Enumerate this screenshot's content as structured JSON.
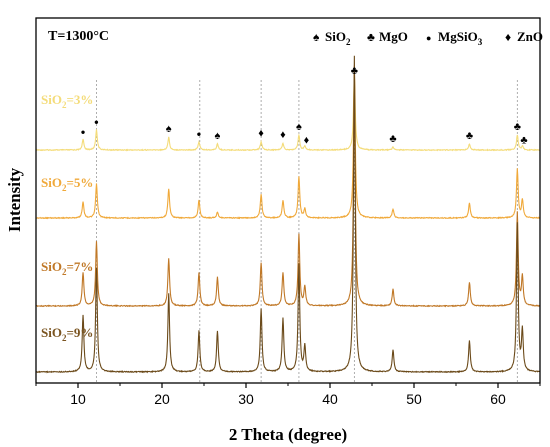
{
  "chart_data": {
    "type": "line",
    "annotation": "T=1300°C",
    "xlabel": "2 Theta (degree)",
    "ylabel": "Intensity",
    "xlim": [
      5,
      65
    ],
    "xticks": [
      10,
      20,
      30,
      40,
      50,
      60
    ],
    "yticks_shown": false,
    "grid": false,
    "legend_position": "top-right",
    "legend": [
      {
        "symbol": "♠",
        "symbol_name": "spade-icon",
        "label": "SiO",
        "sub": "2"
      },
      {
        "symbol": "♣",
        "symbol_name": "club-icon",
        "label": "MgO",
        "sub": ""
      },
      {
        "symbol": "●",
        "symbol_name": "dot-icon",
        "label": "MgSiO",
        "sub": "3"
      },
      {
        "symbol": "♦",
        "symbol_name": "diamond-icon",
        "label": "ZnO",
        "sub": ""
      }
    ],
    "reference_lines_x": [
      12.2,
      24.5,
      31.8,
      36.3,
      42.9,
      62.3
    ],
    "series": [
      {
        "name": "SiO2=3%",
        "name_main": "SiO",
        "name_sub": "2",
        "name_tail": "=3%",
        "color": "#f4dc7a",
        "label_color": "#f4dc7a",
        "peaks": [
          {
            "x": 10.6,
            "h": 0.14
          },
          {
            "x": 12.2,
            "h": 0.27
          },
          {
            "x": 20.8,
            "h": 0.17
          },
          {
            "x": 24.4,
            "h": 0.11
          },
          {
            "x": 26.6,
            "h": 0.08
          },
          {
            "x": 31.8,
            "h": 0.11
          },
          {
            "x": 34.4,
            "h": 0.09
          },
          {
            "x": 36.3,
            "h": 0.2
          },
          {
            "x": 37.0,
            "h": 0.05
          },
          {
            "x": 42.9,
            "h": 1.0
          },
          {
            "x": 47.5,
            "h": 0.04
          },
          {
            "x": 56.6,
            "h": 0.08
          },
          {
            "x": 62.3,
            "h": 0.2
          },
          {
            "x": 62.9,
            "h": 0.05
          }
        ],
        "markers": [
          {
            "x": 10.6,
            "symbol": "●"
          },
          {
            "x": 12.2,
            "symbol": "●"
          },
          {
            "x": 20.8,
            "symbol": "♠"
          },
          {
            "x": 24.4,
            "symbol": "●"
          },
          {
            "x": 26.6,
            "symbol": "♠"
          },
          {
            "x": 31.8,
            "symbol": "♦"
          },
          {
            "x": 34.4,
            "symbol": "♦"
          },
          {
            "x": 36.3,
            "symbol": "♠"
          },
          {
            "x": 37.2,
            "symbol": "♦"
          },
          {
            "x": 42.9,
            "symbol": "♣"
          },
          {
            "x": 47.5,
            "symbol": "♣"
          },
          {
            "x": 56.6,
            "symbol": "♣"
          },
          {
            "x": 62.3,
            "symbol": "♣"
          },
          {
            "x": 63.1,
            "symbol": "♣"
          }
        ]
      },
      {
        "name": "SiO2=5%",
        "name_main": "SiO",
        "name_sub": "2",
        "name_tail": "=5%",
        "color": "#f0a93a",
        "label_color": "#f0a93a",
        "peaks": [
          {
            "x": 10.6,
            "h": 0.11
          },
          {
            "x": 12.2,
            "h": 0.23
          },
          {
            "x": 20.8,
            "h": 0.2
          },
          {
            "x": 24.4,
            "h": 0.12
          },
          {
            "x": 26.6,
            "h": 0.04
          },
          {
            "x": 31.8,
            "h": 0.16
          },
          {
            "x": 34.4,
            "h": 0.12
          },
          {
            "x": 36.3,
            "h": 0.28
          },
          {
            "x": 37.0,
            "h": 0.06
          },
          {
            "x": 42.9,
            "h": 1.0
          },
          {
            "x": 47.5,
            "h": 0.06
          },
          {
            "x": 56.6,
            "h": 0.1
          },
          {
            "x": 62.3,
            "h": 0.33
          },
          {
            "x": 62.9,
            "h": 0.12
          }
        ]
      },
      {
        "name": "SiO2=7%",
        "name_main": "SiO",
        "name_sub": "2",
        "name_tail": "=7%",
        "color": "#c07827",
        "label_color": "#c07827",
        "peaks": [
          {
            "x": 10.6,
            "h": 0.14
          },
          {
            "x": 12.2,
            "h": 0.27
          },
          {
            "x": 20.8,
            "h": 0.2
          },
          {
            "x": 24.4,
            "h": 0.14
          },
          {
            "x": 26.6,
            "h": 0.12
          },
          {
            "x": 31.8,
            "h": 0.18
          },
          {
            "x": 34.4,
            "h": 0.14
          },
          {
            "x": 36.3,
            "h": 0.3
          },
          {
            "x": 37.0,
            "h": 0.08
          },
          {
            "x": 42.9,
            "h": 1.0
          },
          {
            "x": 47.5,
            "h": 0.07
          },
          {
            "x": 56.6,
            "h": 0.1
          },
          {
            "x": 62.3,
            "h": 0.39
          },
          {
            "x": 62.9,
            "h": 0.12
          }
        ]
      },
      {
        "name": "SiO2=9%",
        "name_main": "SiO",
        "name_sub": "2",
        "name_tail": "=9%",
        "color": "#6b4a1a",
        "label_color": "#7a5420",
        "peaks": [
          {
            "x": 10.6,
            "h": 0.18
          },
          {
            "x": 12.2,
            "h": 0.33
          },
          {
            "x": 20.8,
            "h": 0.25
          },
          {
            "x": 24.4,
            "h": 0.13
          },
          {
            "x": 26.6,
            "h": 0.13
          },
          {
            "x": 31.8,
            "h": 0.2
          },
          {
            "x": 34.4,
            "h": 0.17
          },
          {
            "x": 36.3,
            "h": 0.34
          },
          {
            "x": 37.0,
            "h": 0.08
          },
          {
            "x": 42.9,
            "h": 1.0
          },
          {
            "x": 47.5,
            "h": 0.07
          },
          {
            "x": 56.6,
            "h": 0.1
          },
          {
            "x": 62.3,
            "h": 0.47
          },
          {
            "x": 62.9,
            "h": 0.13
          }
        ]
      }
    ]
  }
}
